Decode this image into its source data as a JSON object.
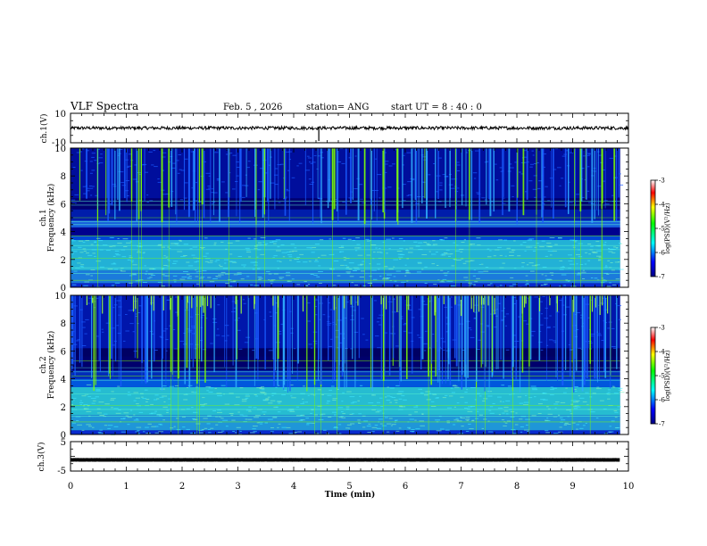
{
  "header": {
    "title": "VLF Spectra",
    "date": "Feb. 5 , 2026",
    "station": "station= ANG",
    "start": "start UT =  8 : 40 : 0"
  },
  "colors": {
    "spec_low": "#00007f",
    "spec_mid": "#00cfff",
    "spec_high": "#7fff00",
    "spec_peak": "#ffffff"
  },
  "chart_data": [
    {
      "type": "line",
      "name": "ch1-waveform",
      "ylabel": "ch.1(V)",
      "ylim": [
        -10,
        10
      ],
      "ytick_labels": [
        "10",
        "-10"
      ],
      "x_range_min": [
        0,
        10
      ],
      "signal_level": 0
    },
    {
      "type": "heatmap",
      "name": "ch1-spectrogram",
      "ylabel": "Frequency (kHz)",
      "panel_label": "ch.1",
      "ylim": [
        0,
        10
      ],
      "ytick_labels": [
        "0",
        "2",
        "4",
        "6",
        "8",
        "10"
      ],
      "x_range_min": [
        0,
        9.85
      ],
      "colorbar": {
        "label": "log(PSD)(V²/Hz)",
        "range": [
          -7,
          -3
        ],
        "tick_labels": [
          "-3",
          "-4",
          "-5",
          "-6",
          "-7"
        ]
      }
    },
    {
      "type": "heatmap",
      "name": "ch2-spectrogram",
      "ylabel": "Frequency (kHz)",
      "panel_label": "ch.2",
      "ylim": [
        0,
        10
      ],
      "ytick_labels": [
        "0",
        "2",
        "4",
        "6",
        "8",
        "10"
      ],
      "x_range_min": [
        0,
        9.85
      ],
      "colorbar": {
        "label": "log(PSD)(V²/Hz)",
        "range": [
          -7,
          -3
        ],
        "tick_labels": [
          "-3",
          "-4",
          "-5",
          "-6",
          "-7"
        ]
      }
    },
    {
      "type": "line",
      "name": "ch3-waveform",
      "ylabel": "ch.3(V)",
      "ylim": [
        -5,
        5
      ],
      "ytick_labels": [
        "5",
        "-5"
      ],
      "x_range_min": [
        0,
        9.85
      ],
      "signal_level": -1.2
    }
  ],
  "xaxis": {
    "label": "Time (min)",
    "range": [
      0,
      10
    ],
    "tick_labels": [
      "0",
      "1",
      "2",
      "3",
      "4",
      "5",
      "6",
      "7",
      "8",
      "9",
      "10"
    ]
  }
}
